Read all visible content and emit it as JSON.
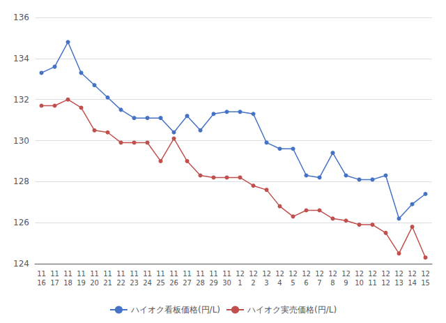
{
  "chart_data": {
    "type": "line",
    "categories": [
      "11\n16",
      "11\n17",
      "11\n18",
      "11\n19",
      "11\n20",
      "11\n21",
      "11\n22",
      "11\n23",
      "11\n24",
      "11\n25",
      "11\n26",
      "11\n27",
      "11\n28",
      "11\n29",
      "11\n30",
      "12\n1",
      "12\n2",
      "12\n3",
      "12\n4",
      "12\n5",
      "12\n6",
      "12\n7",
      "12\n8",
      "12\n9",
      "12\n10",
      "12\n11",
      "12\n12",
      "12\n13",
      "12\n14",
      "12\n15"
    ],
    "series": [
      {
        "name": "ハイオク看板価格(円/L)",
        "color": "#4472C4",
        "marker": "circle",
        "values": [
          133.3,
          133.6,
          134.8,
          133.3,
          132.7,
          132.1,
          131.5,
          131.1,
          131.1,
          131.1,
          130.4,
          131.2,
          130.5,
          131.3,
          131.4,
          131.4,
          131.3,
          129.9,
          129.6,
          129.6,
          128.3,
          128.2,
          129.4,
          128.3,
          128.1,
          128.1,
          128.3,
          126.2,
          126.9,
          127.4
        ]
      },
      {
        "name": "ハイオク実売価格(円/L)",
        "color": "#C0504D",
        "marker": "circle",
        "values": [
          131.7,
          131.7,
          132.0,
          131.6,
          130.5,
          130.4,
          129.9,
          129.9,
          129.9,
          129.0,
          130.1,
          129.0,
          128.3,
          128.2,
          128.2,
          128.2,
          127.8,
          127.6,
          126.8,
          126.3,
          126.6,
          126.6,
          126.2,
          126.1,
          125.9,
          125.9,
          125.5,
          124.5,
          125.8,
          124.3
        ]
      }
    ],
    "ylim": [
      124,
      136
    ],
    "yticks": [
      124,
      126,
      128,
      130,
      132,
      134,
      136
    ],
    "grid": true,
    "legend": "bottom"
  }
}
